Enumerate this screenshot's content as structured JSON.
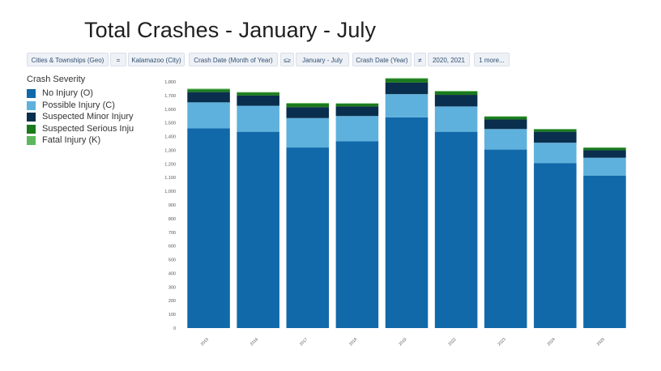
{
  "title": "Total Crashes - January - July",
  "filters": [
    {
      "field": "Cities & Townships (Geo)",
      "op": "=",
      "value": "Kalamazoo (City)"
    },
    {
      "field": "Crash Date (Month of Year)",
      "op": "≤≥",
      "value": "January - July"
    },
    {
      "field": "Crash Date (Year)",
      "op": "≠",
      "value": "2020, 2021"
    },
    {
      "more": "1 more..."
    }
  ],
  "legend": {
    "title": "Crash Severity",
    "items": [
      {
        "label": "No Injury (O)",
        "color": "#1169aa"
      },
      {
        "label": "Possible Injury (C)",
        "color": "#5eb1dc"
      },
      {
        "label": "Suspected Minor Injury",
        "color": "#0a2e4d"
      },
      {
        "label": "Suspected Serious Inju",
        "color": "#1a7a1c"
      },
      {
        "label": "Fatal Injury (K)",
        "color": "#5cb85c"
      }
    ]
  },
  "chart_data": {
    "type": "bar",
    "stacked": true,
    "categories": [
      "2015",
      "2016",
      "2017",
      "2018",
      "2019",
      "2022",
      "2023",
      "2024",
      "2025"
    ],
    "series": [
      {
        "name": "No Injury (O)",
        "color": "#1169aa",
        "values": [
          1460,
          1435,
          1320,
          1365,
          1540,
          1435,
          1305,
          1205,
          1115
        ]
      },
      {
        "name": "Possible Injury (C)",
        "color": "#5eb1dc",
        "values": [
          190,
          190,
          215,
          185,
          170,
          185,
          150,
          150,
          130
        ]
      },
      {
        "name": "Suspected Minor Injury",
        "color": "#0a2e4d",
        "values": [
          75,
          75,
          80,
          70,
          85,
          85,
          70,
          80,
          55
        ]
      },
      {
        "name": "Suspected Serious Inju",
        "color": "#1a7a1c",
        "values": [
          20,
          22,
          25,
          20,
          28,
          24,
          20,
          18,
          18
        ]
      },
      {
        "name": "Fatal Injury (K)",
        "color": "#5cb85c",
        "values": [
          5,
          3,
          5,
          3,
          4,
          4,
          3,
          2,
          2
        ]
      }
    ],
    "yticks": [
      "0",
      "100",
      "200",
      "300",
      "400",
      "500",
      "600",
      "700",
      "800",
      "900",
      "1,000",
      "1,100",
      "1,200",
      "1,300",
      "1,400",
      "1,500",
      "1,600",
      "1,700",
      "1,800"
    ],
    "ylim": [
      0,
      1800
    ],
    "xlabel": "",
    "ylabel": "",
    "grid": false,
    "legend_position": "left"
  }
}
